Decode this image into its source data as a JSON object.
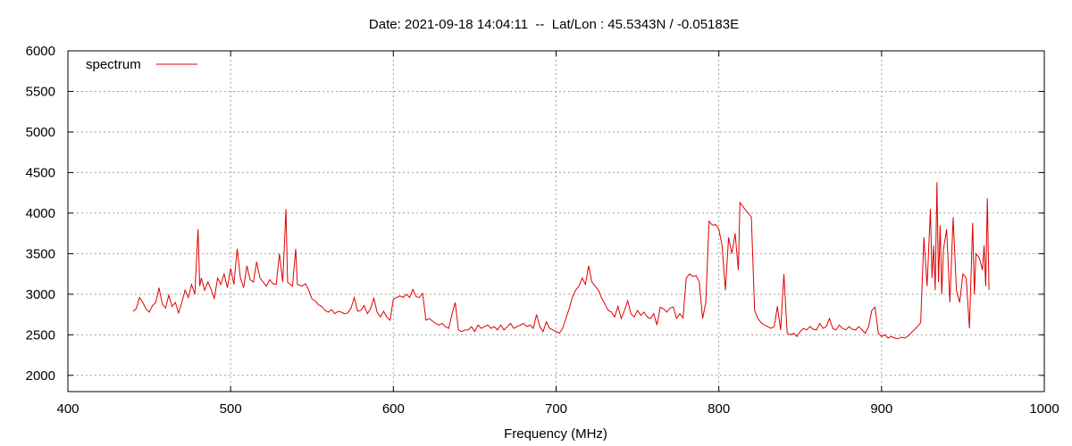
{
  "chart_data": {
    "type": "line",
    "title": "Date: 2021-09-18 14:04:11  --  Lat/Lon : 45.5343N / -0.05183E",
    "xlabel": "Frequency (MHz)",
    "ylabel": "",
    "xlim": [
      400,
      1000
    ],
    "ylim": [
      1800,
      6000
    ],
    "xticks": [
      400,
      500,
      600,
      700,
      800,
      900,
      1000
    ],
    "yticks": [
      2000,
      2500,
      3000,
      3500,
      4000,
      4500,
      5000,
      5500,
      6000
    ],
    "grid": true,
    "legend": "top-left",
    "series": [
      {
        "name": "spectrum",
        "color": "#e00000",
        "points": [
          [
            440,
            2790
          ],
          [
            442,
            2820
          ],
          [
            444,
            2960
          ],
          [
            446,
            2900
          ],
          [
            448,
            2820
          ],
          [
            450,
            2780
          ],
          [
            452,
            2860
          ],
          [
            454,
            2900
          ],
          [
            456,
            3080
          ],
          [
            458,
            2880
          ],
          [
            460,
            2830
          ],
          [
            462,
            2990
          ],
          [
            464,
            2850
          ],
          [
            466,
            2900
          ],
          [
            468,
            2770
          ],
          [
            470,
            2900
          ],
          [
            472,
            3050
          ],
          [
            474,
            2960
          ],
          [
            476,
            3120
          ],
          [
            478,
            3000
          ],
          [
            480,
            3800
          ],
          [
            481,
            3100
          ],
          [
            482,
            3200
          ],
          [
            484,
            3050
          ],
          [
            486,
            3150
          ],
          [
            488,
            3060
          ],
          [
            490,
            2950
          ],
          [
            492,
            3200
          ],
          [
            494,
            3120
          ],
          [
            496,
            3250
          ],
          [
            498,
            3080
          ],
          [
            500,
            3320
          ],
          [
            502,
            3120
          ],
          [
            504,
            3560
          ],
          [
            506,
            3200
          ],
          [
            508,
            3080
          ],
          [
            510,
            3350
          ],
          [
            512,
            3180
          ],
          [
            514,
            3150
          ],
          [
            516,
            3400
          ],
          [
            518,
            3200
          ],
          [
            520,
            3150
          ],
          [
            522,
            3100
          ],
          [
            524,
            3180
          ],
          [
            526,
            3130
          ],
          [
            528,
            3120
          ],
          [
            530,
            3500
          ],
          [
            532,
            3150
          ],
          [
            534,
            4050
          ],
          [
            535,
            3150
          ],
          [
            538,
            3100
          ],
          [
            540,
            3560
          ],
          [
            541,
            3120
          ],
          [
            544,
            3100
          ],
          [
            546,
            3130
          ],
          [
            548,
            3050
          ],
          [
            550,
            2940
          ],
          [
            552,
            2920
          ],
          [
            554,
            2870
          ],
          [
            556,
            2850
          ],
          [
            558,
            2800
          ],
          [
            560,
            2780
          ],
          [
            562,
            2810
          ],
          [
            564,
            2760
          ],
          [
            566,
            2790
          ],
          [
            568,
            2780
          ],
          [
            570,
            2760
          ],
          [
            572,
            2770
          ],
          [
            574,
            2830
          ],
          [
            576,
            2960
          ],
          [
            578,
            2790
          ],
          [
            580,
            2800
          ],
          [
            582,
            2860
          ],
          [
            584,
            2760
          ],
          [
            586,
            2820
          ],
          [
            588,
            2950
          ],
          [
            590,
            2780
          ],
          [
            592,
            2720
          ],
          [
            594,
            2790
          ],
          [
            596,
            2720
          ],
          [
            598,
            2680
          ],
          [
            600,
            2940
          ],
          [
            602,
            2960
          ],
          [
            604,
            2980
          ],
          [
            606,
            2960
          ],
          [
            608,
            3000
          ],
          [
            610,
            2960
          ],
          [
            612,
            3060
          ],
          [
            614,
            2970
          ],
          [
            616,
            2960
          ],
          [
            618,
            3010
          ],
          [
            620,
            2680
          ],
          [
            622,
            2700
          ],
          [
            624,
            2670
          ],
          [
            626,
            2640
          ],
          [
            628,
            2620
          ],
          [
            630,
            2640
          ],
          [
            632,
            2600
          ],
          [
            634,
            2580
          ],
          [
            636,
            2750
          ],
          [
            638,
            2900
          ],
          [
            640,
            2560
          ],
          [
            642,
            2540
          ],
          [
            644,
            2560
          ],
          [
            646,
            2560
          ],
          [
            648,
            2600
          ],
          [
            650,
            2540
          ],
          [
            652,
            2620
          ],
          [
            654,
            2580
          ],
          [
            656,
            2600
          ],
          [
            658,
            2620
          ],
          [
            660,
            2580
          ],
          [
            662,
            2600
          ],
          [
            664,
            2560
          ],
          [
            666,
            2620
          ],
          [
            668,
            2560
          ],
          [
            670,
            2600
          ],
          [
            672,
            2640
          ],
          [
            674,
            2580
          ],
          [
            676,
            2600
          ],
          [
            678,
            2620
          ],
          [
            680,
            2640
          ],
          [
            682,
            2600
          ],
          [
            684,
            2620
          ],
          [
            686,
            2580
          ],
          [
            688,
            2750
          ],
          [
            690,
            2600
          ],
          [
            692,
            2540
          ],
          [
            694,
            2660
          ],
          [
            696,
            2580
          ],
          [
            698,
            2560
          ],
          [
            700,
            2540
          ],
          [
            702,
            2520
          ],
          [
            704,
            2580
          ],
          [
            706,
            2700
          ],
          [
            708,
            2820
          ],
          [
            710,
            2960
          ],
          [
            712,
            3050
          ],
          [
            714,
            3100
          ],
          [
            716,
            3200
          ],
          [
            718,
            3120
          ],
          [
            720,
            3350
          ],
          [
            722,
            3150
          ],
          [
            724,
            3100
          ],
          [
            726,
            3050
          ],
          [
            728,
            2950
          ],
          [
            730,
            2880
          ],
          [
            732,
            2800
          ],
          [
            734,
            2780
          ],
          [
            736,
            2720
          ],
          [
            738,
            2850
          ],
          [
            740,
            2700
          ],
          [
            742,
            2800
          ],
          [
            744,
            2920
          ],
          [
            746,
            2760
          ],
          [
            748,
            2720
          ],
          [
            750,
            2800
          ],
          [
            752,
            2740
          ],
          [
            754,
            2780
          ],
          [
            756,
            2720
          ],
          [
            758,
            2700
          ],
          [
            760,
            2760
          ],
          [
            762,
            2620
          ],
          [
            764,
            2840
          ],
          [
            766,
            2820
          ],
          [
            768,
            2780
          ],
          [
            770,
            2830
          ],
          [
            772,
            2840
          ],
          [
            774,
            2700
          ],
          [
            776,
            2760
          ],
          [
            778,
            2710
          ],
          [
            780,
            3200
          ],
          [
            782,
            3250
          ],
          [
            784,
            3220
          ],
          [
            786,
            3230
          ],
          [
            788,
            3150
          ],
          [
            790,
            2700
          ],
          [
            792,
            2900
          ],
          [
            794,
            3900
          ],
          [
            796,
            3850
          ],
          [
            798,
            3860
          ],
          [
            800,
            3800
          ],
          [
            802,
            3600
          ],
          [
            804,
            3050
          ],
          [
            806,
            3700
          ],
          [
            808,
            3500
          ],
          [
            810,
            3750
          ],
          [
            812,
            3300
          ],
          [
            813,
            4130
          ],
          [
            816,
            4050
          ],
          [
            818,
            4000
          ],
          [
            820,
            3950
          ],
          [
            822,
            2800
          ],
          [
            824,
            2700
          ],
          [
            826,
            2650
          ],
          [
            828,
            2620
          ],
          [
            830,
            2600
          ],
          [
            832,
            2580
          ],
          [
            834,
            2600
          ],
          [
            836,
            2850
          ],
          [
            838,
            2560
          ],
          [
            840,
            3250
          ],
          [
            842,
            2520
          ],
          [
            844,
            2500
          ],
          [
            846,
            2520
          ],
          [
            848,
            2480
          ],
          [
            850,
            2540
          ],
          [
            852,
            2580
          ],
          [
            854,
            2560
          ],
          [
            856,
            2600
          ],
          [
            858,
            2570
          ],
          [
            860,
            2560
          ],
          [
            862,
            2640
          ],
          [
            864,
            2580
          ],
          [
            866,
            2600
          ],
          [
            868,
            2700
          ],
          [
            870,
            2580
          ],
          [
            872,
            2560
          ],
          [
            874,
            2620
          ],
          [
            876,
            2580
          ],
          [
            878,
            2560
          ],
          [
            880,
            2600
          ],
          [
            882,
            2570
          ],
          [
            884,
            2560
          ],
          [
            886,
            2600
          ],
          [
            888,
            2560
          ],
          [
            890,
            2520
          ],
          [
            892,
            2600
          ],
          [
            894,
            2800
          ],
          [
            896,
            2840
          ],
          [
            898,
            2520
          ],
          [
            900,
            2480
          ],
          [
            902,
            2500
          ],
          [
            904,
            2460
          ],
          [
            906,
            2480
          ],
          [
            908,
            2460
          ],
          [
            910,
            2450
          ],
          [
            912,
            2470
          ],
          [
            914,
            2460
          ],
          [
            916,
            2480
          ],
          [
            918,
            2520
          ],
          [
            920,
            2560
          ],
          [
            922,
            2600
          ],
          [
            924,
            2650
          ],
          [
            926,
            3700
          ],
          [
            928,
            3100
          ],
          [
            930,
            4050
          ],
          [
            931,
            3200
          ],
          [
            932,
            3600
          ],
          [
            933,
            3050
          ],
          [
            934,
            4380
          ],
          [
            935,
            3150
          ],
          [
            936,
            3850
          ],
          [
            937,
            3000
          ],
          [
            938,
            3550
          ],
          [
            940,
            3800
          ],
          [
            942,
            2900
          ],
          [
            944,
            3950
          ],
          [
            946,
            3050
          ],
          [
            948,
            2900
          ],
          [
            950,
            3250
          ],
          [
            952,
            3200
          ],
          [
            954,
            2580
          ],
          [
            956,
            3880
          ],
          [
            957,
            3000
          ],
          [
            958,
            3500
          ],
          [
            960,
            3450
          ],
          [
            962,
            3300
          ],
          [
            963,
            3600
          ],
          [
            964,
            3100
          ],
          [
            965,
            4180
          ],
          [
            966,
            3050
          ]
        ]
      }
    ]
  }
}
